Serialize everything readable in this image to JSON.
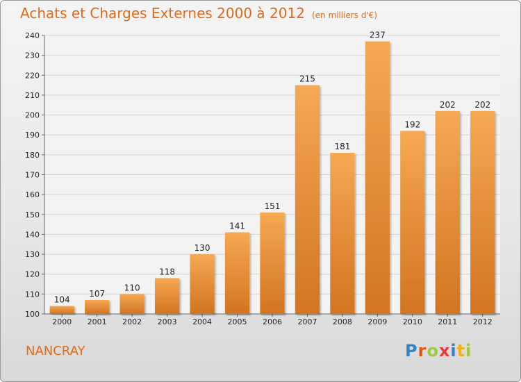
{
  "header": {
    "title": "Achats et Charges Externes 2000 à 2012",
    "unit": "(en milliers d'€)"
  },
  "footer": {
    "commune": "NANCRAY",
    "brand": "Proxiti"
  },
  "colors": {
    "bar_light": "#f6a852",
    "bar_dark": "#d2741f",
    "title": "#e06a1a"
  },
  "chart_data": {
    "type": "bar",
    "title": "Achats et Charges Externes 2000 à 2012",
    "subtitle": "(en milliers d'€)",
    "categories": [
      "2000",
      "2001",
      "2002",
      "2003",
      "2004",
      "2005",
      "2006",
      "2007",
      "2008",
      "2009",
      "2010",
      "2011",
      "2012"
    ],
    "values": [
      104,
      107,
      110,
      118,
      130,
      141,
      151,
      215,
      181,
      237,
      192,
      202,
      202
    ],
    "ylim": [
      100,
      240
    ],
    "yticks": [
      100,
      110,
      120,
      130,
      140,
      150,
      160,
      170,
      180,
      190,
      200,
      210,
      220,
      230,
      240
    ],
    "grid": true,
    "legend": "none"
  }
}
